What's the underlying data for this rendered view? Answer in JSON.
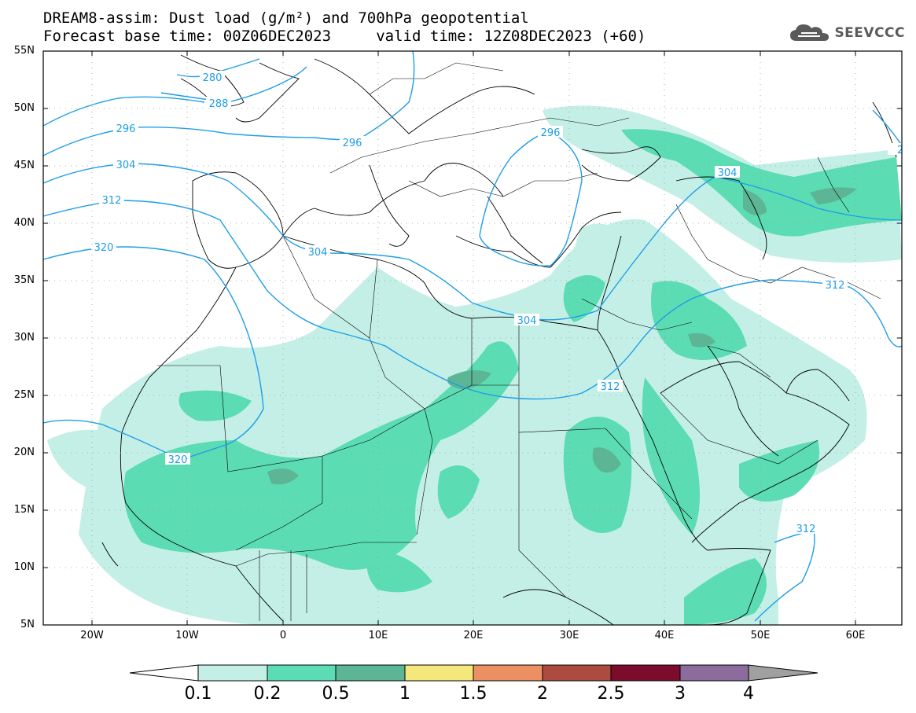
{
  "header": {
    "title_line1": "DREAM8-assim: Dust load (g/m²) and 700hPa geopotential",
    "title_line2": "Forecast base time: 00Z06DEC2023     valid time: 12Z08DEC2023 (+60)",
    "logo_text": "SEEVCCC"
  },
  "map": {
    "lat_labels": [
      "55N",
      "50N",
      "45N",
      "40N",
      "35N",
      "30N",
      "25N",
      "20N",
      "15N",
      "10N",
      "5N"
    ],
    "lon_labels": [
      "20W",
      "10W",
      "0",
      "10E",
      "20E",
      "30E",
      "40E",
      "50E",
      "60E"
    ],
    "contour_labels": [
      "280",
      "288",
      "296",
      "296",
      "296",
      "304",
      "304",
      "304",
      "304",
      "312",
      "312",
      "312",
      "312",
      "320",
      "320",
      "2"
    ],
    "dust_colors": {
      "level_0_1": "#c4efe6",
      "level_0_2": "#5cdcb3",
      "level_0_5": "#5cb595"
    },
    "contour_color": "#1e9ee6"
  },
  "colorbar": {
    "labels": [
      "0.1",
      "0.2",
      "0.5",
      "1",
      "1.5",
      "2",
      "2.5",
      "3",
      "4"
    ],
    "colors": [
      "#c4efe6",
      "#5cdcb3",
      "#5cb595",
      "#f4e87c",
      "#ec9064",
      "#ac4c40",
      "#7c0c2c",
      "#8c6c9c"
    ],
    "under_color": "#ffffff",
    "over_color": "#a0a0a0"
  }
}
